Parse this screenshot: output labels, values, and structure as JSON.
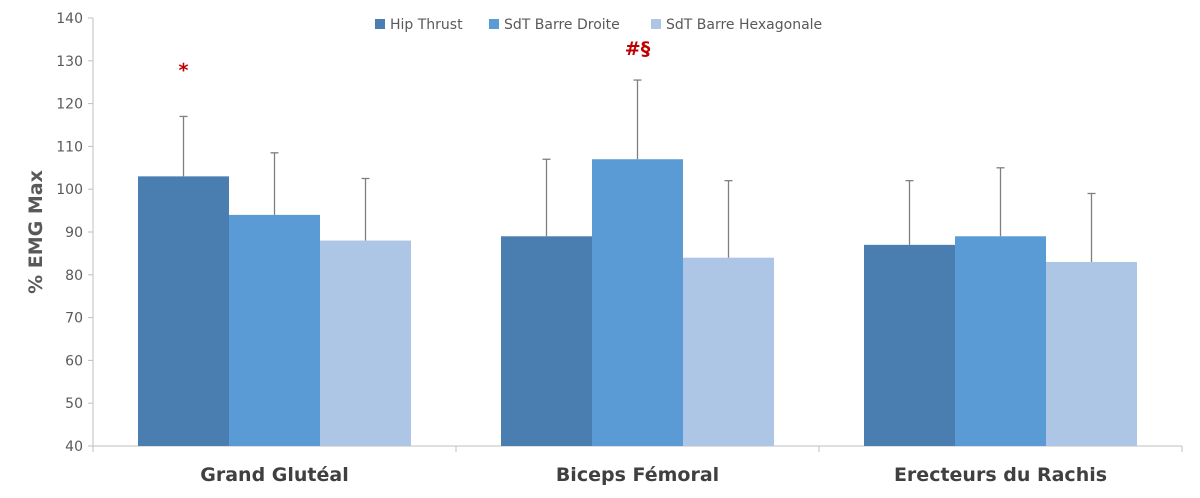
{
  "chart_data": {
    "type": "bar",
    "ylabel": "% EMG Max",
    "ylim": [
      40,
      140
    ],
    "yticks": [
      40,
      50,
      60,
      70,
      80,
      90,
      100,
      110,
      120,
      130,
      140
    ],
    "categories": [
      "Grand Glutéal",
      "Biceps Fémoral",
      "Erecteurs du Rachis"
    ],
    "series": [
      {
        "name": "Hip Thrust",
        "color": "#4a7eb0",
        "values": [
          103,
          89,
          87
        ],
        "errors": [
          14,
          18,
          15
        ]
      },
      {
        "name": "SdT Barre Droite",
        "color": "#5b9bd5",
        "values": [
          94,
          107,
          89
        ],
        "errors": [
          14.5,
          18.5,
          16
        ]
      },
      {
        "name": "SdT Barre Hexagonale",
        "color": "#adc6e6",
        "values": [
          88,
          84,
          83
        ],
        "errors": [
          14.5,
          18,
          16
        ]
      }
    ],
    "annotations": [
      {
        "text": "*",
        "category": 0,
        "series": 0,
        "y": 128
      },
      {
        "text": "#§",
        "category": 1,
        "series": 1,
        "y": 133
      }
    ],
    "legend_position": "top-center",
    "grid": false
  }
}
